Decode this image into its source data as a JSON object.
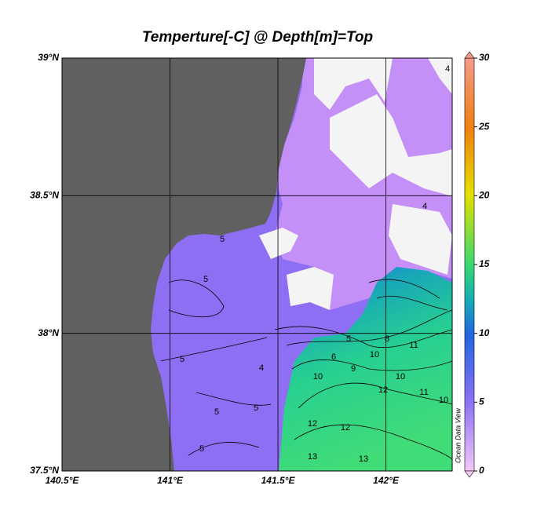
{
  "title": "Temperture[-C] @ Depth[m]=Top",
  "map": {
    "xlim": [
      140.5,
      142.307
    ],
    "ylim": [
      37.5,
      39
    ],
    "xticks": [
      {
        "value": 140.5,
        "label": "140.5°E"
      },
      {
        "value": 141,
        "label": "141°E"
      },
      {
        "value": 141.5,
        "label": "141.5°E"
      },
      {
        "value": 142,
        "label": "142°E"
      }
    ],
    "yticks": [
      {
        "value": 37.5,
        "label": "37.5°N"
      },
      {
        "value": 38,
        "label": "38°N"
      },
      {
        "value": 38.5,
        "label": "38.5°N"
      },
      {
        "value": 39,
        "label": "39°N"
      }
    ],
    "grid": true
  },
  "colorbar": {
    "range": [
      0,
      30
    ],
    "ticks": [
      0,
      5,
      10,
      15,
      20,
      25,
      30
    ]
  },
  "contour_labels": [
    4,
    4,
    5,
    5,
    5,
    5,
    5,
    5,
    4,
    5,
    6,
    8,
    9,
    10,
    10,
    11,
    10,
    11,
    12,
    10,
    12,
    12,
    13,
    13
  ],
  "watermark": "Ocean Data View"
}
